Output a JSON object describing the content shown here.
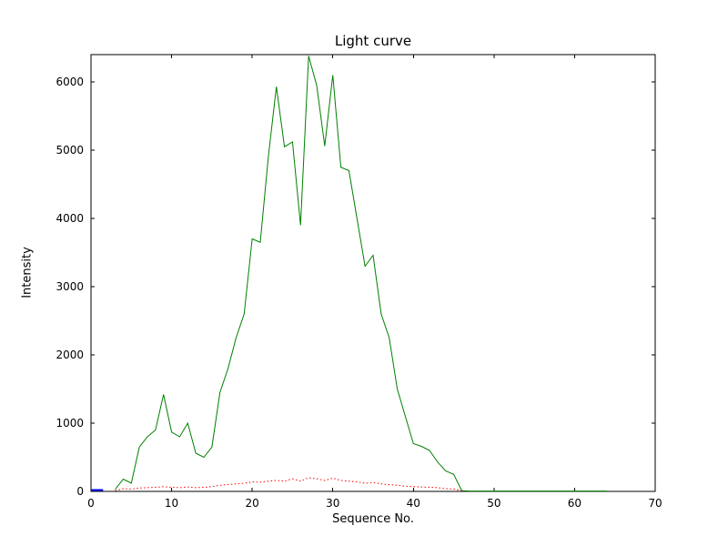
{
  "chart_data": {
    "type": "line",
    "title": "Light curve",
    "xlabel": "Sequence No.",
    "ylabel": "Intensity",
    "xlim": [
      0,
      70
    ],
    "ylim": [
      0,
      6400
    ],
    "xticks": [
      0,
      10,
      20,
      30,
      40,
      50,
      60,
      70
    ],
    "yticks": [
      0,
      1000,
      2000,
      3000,
      4000,
      5000,
      6000
    ],
    "grid": false,
    "legend": null,
    "axes_color": "#000000",
    "background_color": "#ffffff",
    "series": [
      {
        "name": "baseline-mark",
        "color": "#0000ff",
        "style": "solid",
        "width": 2,
        "x": [
          0,
          1.5
        ],
        "values": [
          20,
          20
        ]
      },
      {
        "name": "main-light-curve",
        "color": "#007f00",
        "style": "solid",
        "width": 1,
        "x": [
          3,
          4,
          5,
          6,
          7,
          8,
          9,
          10,
          11,
          12,
          13,
          14,
          15,
          16,
          17,
          18,
          19,
          20,
          21,
          22,
          23,
          24,
          25,
          26,
          27,
          28,
          29,
          30,
          31,
          32,
          33,
          34,
          35,
          36,
          37,
          38,
          39,
          40,
          41,
          42,
          43,
          44,
          45,
          46,
          47,
          48,
          50,
          52,
          54,
          56,
          58,
          60,
          62,
          64
        ],
        "values": [
          30,
          180,
          120,
          650,
          800,
          900,
          1420,
          870,
          800,
          1000,
          560,
          500,
          650,
          1450,
          1800,
          2250,
          2600,
          3700,
          3650,
          4900,
          5930,
          5050,
          5120,
          3900,
          6380,
          5950,
          5060,
          6100,
          4750,
          4700,
          4000,
          3300,
          3460,
          2600,
          2250,
          1500,
          1100,
          700,
          660,
          600,
          430,
          300,
          250,
          10,
          5,
          5,
          5,
          5,
          5,
          5,
          5,
          5,
          5,
          5
        ]
      },
      {
        "name": "reference-curve",
        "color": "#ff0000",
        "style": "dotted",
        "width": 1,
        "x": [
          3,
          4,
          5,
          6,
          7,
          8,
          9,
          10,
          11,
          12,
          13,
          14,
          15,
          16,
          17,
          18,
          19,
          20,
          21,
          22,
          23,
          24,
          25,
          26,
          27,
          28,
          29,
          30,
          31,
          32,
          33,
          34,
          35,
          36,
          37,
          38,
          39,
          40,
          41,
          42,
          43,
          44,
          45,
          46
        ],
        "values": [
          10,
          40,
          35,
          50,
          55,
          60,
          70,
          60,
          55,
          65,
          55,
          60,
          70,
          90,
          100,
          110,
          120,
          140,
          135,
          150,
          160,
          150,
          185,
          150,
          200,
          185,
          160,
          195,
          160,
          150,
          140,
          120,
          130,
          110,
          100,
          90,
          75,
          70,
          65,
          60,
          55,
          40,
          35,
          10
        ]
      }
    ]
  }
}
